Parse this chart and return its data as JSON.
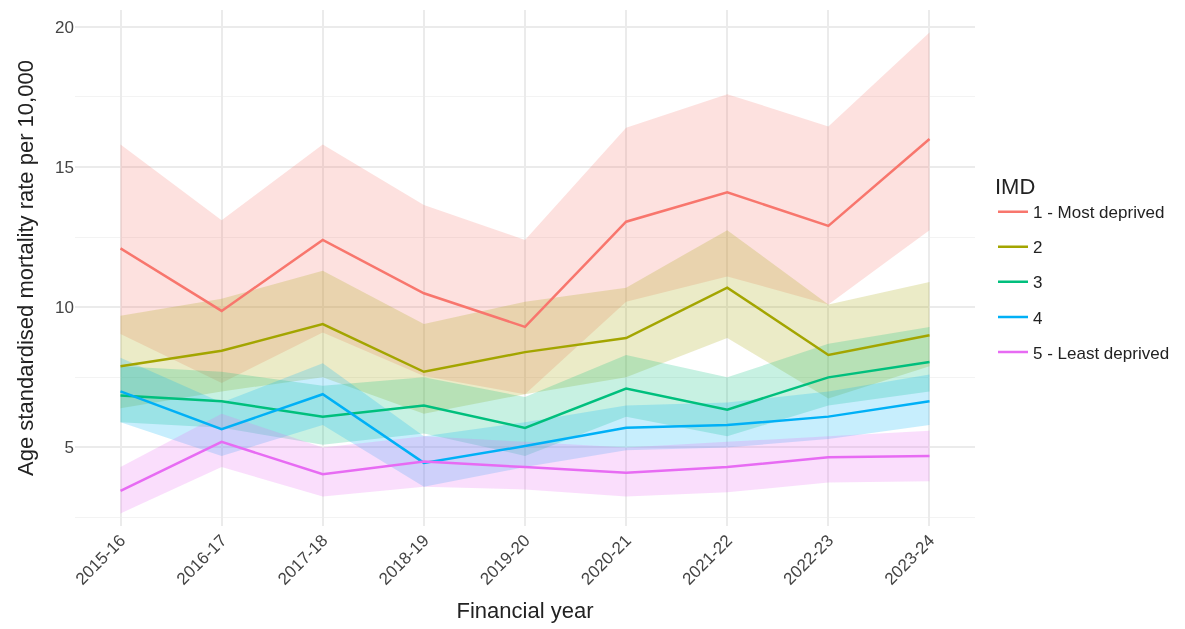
{
  "chart_data": {
    "type": "line",
    "xlabel": "Financial year",
    "ylabel": "Age standardised mortality rate per 10,000",
    "legend_title": "IMD",
    "legend": "right",
    "grid": true,
    "line_style": "solid",
    "marker": "none",
    "categories": [
      "2015-16",
      "2016-17",
      "2017-18",
      "2018-19",
      "2019-20",
      "2020-21",
      "2021-22",
      "2022-23",
      "2023-24"
    ],
    "ylim": [
      2.2,
      20.6
    ],
    "yticks": [
      5,
      10,
      15,
      20
    ],
    "series": [
      {
        "name": "1 - Most deprived",
        "color": "#f8766d",
        "values": [
          12.1,
          9.87,
          12.4,
          10.5,
          9.3,
          13.05,
          14.1,
          12.9,
          16.0
        ],
        "lower": [
          9.05,
          7.3,
          9.1,
          7.55,
          6.9,
          10.2,
          11.1,
          10.1,
          12.75
        ],
        "upper": [
          15.8,
          13.1,
          15.8,
          13.65,
          12.4,
          16.4,
          17.6,
          16.45,
          19.8
        ]
      },
      {
        "name": "2",
        "color": "#a3a500",
        "values": [
          7.9,
          8.45,
          9.4,
          7.7,
          8.4,
          8.9,
          10.7,
          8.3,
          9.0
        ],
        "lower": [
          6.4,
          7.0,
          7.5,
          6.2,
          6.9,
          7.5,
          8.9,
          6.75,
          7.9
        ],
        "upper": [
          9.7,
          10.3,
          11.3,
          9.4,
          10.2,
          10.7,
          12.75,
          10.1,
          10.9
        ]
      },
      {
        "name": "3",
        "color": "#00bf7d",
        "values": [
          6.85,
          6.65,
          6.1,
          6.5,
          5.7,
          7.1,
          6.35,
          7.5,
          8.05
        ],
        "lower": [
          5.9,
          5.7,
          5.1,
          5.5,
          4.7,
          6.1,
          5.4,
          6.5,
          7.0
        ],
        "upper": [
          7.9,
          7.7,
          7.2,
          7.5,
          6.8,
          8.3,
          7.5,
          8.7,
          9.3
        ]
      },
      {
        "name": "4",
        "color": "#00b0f6",
        "values": [
          7.0,
          5.65,
          6.9,
          4.45,
          5.05,
          5.7,
          5.8,
          6.1,
          6.65
        ],
        "lower": [
          5.9,
          4.7,
          5.8,
          3.6,
          4.3,
          4.9,
          5.0,
          5.3,
          5.8
        ],
        "upper": [
          8.2,
          6.6,
          8.0,
          5.4,
          5.9,
          6.5,
          6.6,
          7.0,
          7.6
        ]
      },
      {
        "name": "5 - Least deprived",
        "color": "#e76bf3",
        "values": [
          3.45,
          5.2,
          4.05,
          4.5,
          4.3,
          4.1,
          4.3,
          4.65,
          4.7
        ],
        "lower": [
          2.65,
          4.3,
          3.25,
          3.6,
          3.5,
          3.25,
          3.4,
          3.75,
          3.8
        ],
        "upper": [
          4.3,
          6.2,
          5.0,
          5.4,
          5.2,
          5.0,
          5.2,
          5.4,
          5.6
        ]
      }
    ]
  }
}
